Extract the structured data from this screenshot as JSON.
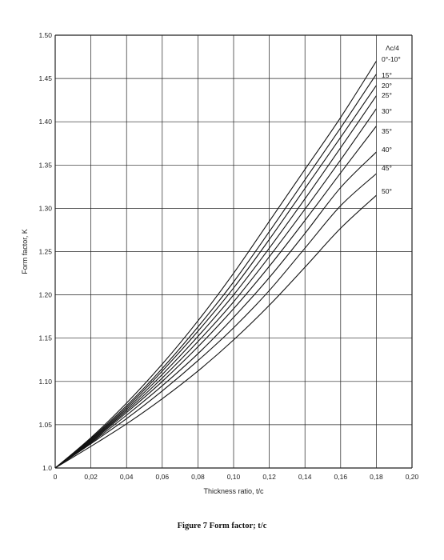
{
  "figure_caption": "Figure 7 Form factor; t/c",
  "chart_data": {
    "type": "line",
    "title": "",
    "xlabel": "Thickness ratio, t/c",
    "ylabel": "Form factor, K",
    "xlim": [
      0,
      0.2
    ],
    "ylim": [
      1.0,
      1.5
    ],
    "grid": true,
    "x_tick_labels": [
      "0",
      "0,02",
      "0,04",
      "0,06",
      "0,08",
      "0,10",
      "0,12",
      "0,14",
      "0,16",
      "0,18",
      "0,20"
    ],
    "y_tick_labels": [
      "1.0",
      "1.05",
      "1.10",
      "1.15",
      "1.20",
      "1.25",
      "1.30",
      "1.35",
      "1.40",
      "1.45",
      "1.50"
    ],
    "legend_title": "Λc/4",
    "x": [
      0,
      0.02,
      0.04,
      0.06,
      0.08,
      0.1,
      0.12,
      0.14,
      0.16,
      0.18
    ],
    "series": [
      {
        "name": "0°-10°",
        "values": [
          1.0,
          1.035,
          1.075,
          1.12,
          1.17,
          1.225,
          1.285,
          1.345,
          1.405,
          1.47
        ]
      },
      {
        "name": "15°",
        "values": [
          1.0,
          1.034,
          1.072,
          1.115,
          1.163,
          1.215,
          1.273,
          1.333,
          1.393,
          1.455
        ]
      },
      {
        "name": "20°",
        "values": [
          1.0,
          1.033,
          1.07,
          1.112,
          1.158,
          1.208,
          1.264,
          1.323,
          1.382,
          1.442
        ]
      },
      {
        "name": "25°",
        "values": [
          1.0,
          1.032,
          1.068,
          1.108,
          1.152,
          1.2,
          1.254,
          1.311,
          1.37,
          1.43
        ]
      },
      {
        "name": "30°",
        "values": [
          1.0,
          1.031,
          1.066,
          1.104,
          1.146,
          1.192,
          1.244,
          1.299,
          1.356,
          1.415
        ]
      },
      {
        "name": "35°",
        "values": [
          1.0,
          1.03,
          1.064,
          1.1,
          1.14,
          1.184,
          1.233,
          1.286,
          1.341,
          1.395
        ]
      },
      {
        "name": "40°",
        "values": [
          1.0,
          1.029,
          1.061,
          1.095,
          1.132,
          1.174,
          1.22,
          1.271,
          1.324,
          1.365
        ]
      },
      {
        "name": "45°",
        "values": [
          1.0,
          1.028,
          1.057,
          1.089,
          1.124,
          1.162,
          1.205,
          1.254,
          1.303,
          1.34
        ]
      },
      {
        "name": "50°",
        "values": [
          1.0,
          1.025,
          1.051,
          1.08,
          1.112,
          1.148,
          1.188,
          1.232,
          1.277,
          1.315
        ]
      }
    ]
  }
}
